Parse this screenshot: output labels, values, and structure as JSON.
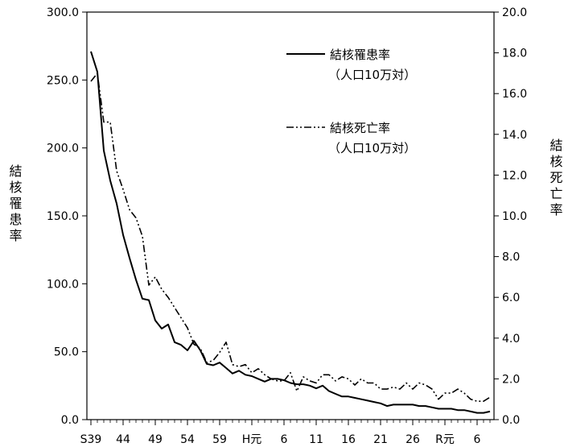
{
  "chart_data": {
    "type": "line",
    "x_tick_labels": [
      "S39",
      "44",
      "49",
      "54",
      "59",
      "H元",
      "6",
      "11",
      "16",
      "21",
      "26",
      "R元",
      "6"
    ],
    "y_left": {
      "label": "結核罹患率",
      "ylim": [
        0,
        300
      ],
      "ticks": [
        "0.0",
        "50.0",
        "100.0",
        "150.0",
        "200.0",
        "250.0",
        "300.0"
      ]
    },
    "y_right": {
      "label": "結核死亡率",
      "ylim": [
        0,
        20
      ],
      "ticks": [
        "0.0",
        "2.0",
        "4.0",
        "6.0",
        "8.0",
        "10.0",
        "12.0",
        "14.0",
        "16.0",
        "18.0",
        "20.0"
      ]
    },
    "grid": false,
    "legend_position": "top-right",
    "series": [
      {
        "name": "結核罹患率",
        "name_sub": "（人口10万対）",
        "axis": "left",
        "style": "solid",
        "start_year": "S39",
        "values": [
          271,
          256,
          198,
          176,
          159,
          136,
          119,
          103,
          89,
          88,
          73,
          67,
          70,
          57,
          55,
          51,
          58,
          51,
          41,
          40,
          42,
          38,
          34,
          36,
          33,
          32,
          30,
          28,
          30,
          30,
          29,
          27,
          26,
          26,
          25,
          23,
          25,
          21,
          19,
          17,
          17,
          16,
          15,
          14,
          13,
          12,
          10,
          11,
          11,
          11,
          11,
          10,
          10,
          9,
          8,
          8,
          8,
          7,
          7,
          6,
          5,
          5,
          6
        ]
      },
      {
        "name": "結核死亡率",
        "name_sub": "（人口10万対）",
        "axis": "right",
        "style": "dash-dot-dot",
        "start_year": "S39",
        "values": [
          16.6,
          17.0,
          14.6,
          14.6,
          12.2,
          11.3,
          10.3,
          9.9,
          9.0,
          6.6,
          7.0,
          6.4,
          6.0,
          5.5,
          5.0,
          4.5,
          3.7,
          3.5,
          2.8,
          2.9,
          3.3,
          3.8,
          2.7,
          2.6,
          2.7,
          2.3,
          2.5,
          2.2,
          2.0,
          1.9,
          1.9,
          2.3,
          1.4,
          2.1,
          1.9,
          1.8,
          2.2,
          2.2,
          1.9,
          2.1,
          2.0,
          1.7,
          2.0,
          1.8,
          1.8,
          1.5,
          1.5,
          1.6,
          1.5,
          1.8,
          1.5,
          1.8,
          1.7,
          1.5,
          1.0,
          1.3,
          1.3,
          1.5,
          1.3,
          1.0,
          0.9,
          0.9,
          1.1
        ]
      }
    ]
  }
}
